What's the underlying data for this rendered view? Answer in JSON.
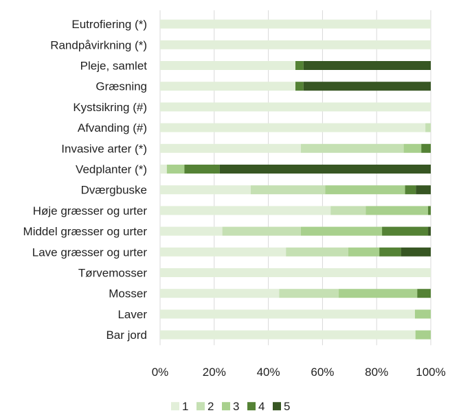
{
  "chart_data": {
    "type": "bar",
    "orientation": "horizontal",
    "stacked": "percent",
    "categories": [
      "Eutrofiering (*)",
      "Randpåvirkning (*)",
      "Pleje, samlet",
      "Græsning",
      "Kystsikring (#)",
      "Afvanding (#)",
      "Invasive arter (*)",
      "Vedplanter (*)",
      "Dværgbuske",
      "Høje græsser og urter",
      "Middel græsser og urter",
      "Lave græsser og urter",
      "Tørvemosser",
      "Mosser",
      "Laver",
      "Bar jord"
    ],
    "series": [
      {
        "name": "1",
        "color": "#e2efd9",
        "values": [
          100,
          100,
          50,
          50,
          100,
          98,
          52,
          2.5,
          33.5,
          63,
          23,
          46.5,
          100,
          44,
          88.5,
          100
        ]
      },
      {
        "name": "2",
        "color": "#c5e0b3",
        "values": [
          0,
          0,
          0,
          0,
          0,
          2,
          38,
          0,
          27.5,
          13,
          29,
          23,
          0,
          22,
          0,
          0
        ]
      },
      {
        "name": "3",
        "color": "#a8d08d",
        "values": [
          0,
          0,
          0,
          0,
          0,
          0,
          6.5,
          6.5,
          29.5,
          23,
          30,
          11.5,
          0,
          29,
          5.5,
          6
        ]
      },
      {
        "name": "4",
        "color": "#548235",
        "values": [
          0,
          0,
          3,
          3,
          0,
          0,
          3.5,
          13,
          4,
          1,
          17,
          8,
          0,
          5,
          0,
          0
        ]
      },
      {
        "name": "5",
        "color": "#375623",
        "values": [
          0,
          0,
          47,
          47,
          0,
          0,
          0,
          78,
          5.5,
          0,
          1,
          11,
          0,
          0,
          0,
          0
        ]
      }
    ],
    "xlim": [
      0,
      100
    ],
    "xticks": [
      "0%",
      "20%",
      "40%",
      "60%",
      "80%",
      "100%"
    ],
    "grid": true,
    "legend_placement": "bottom",
    "title": "",
    "xlabel": "",
    "ylabel": ""
  }
}
